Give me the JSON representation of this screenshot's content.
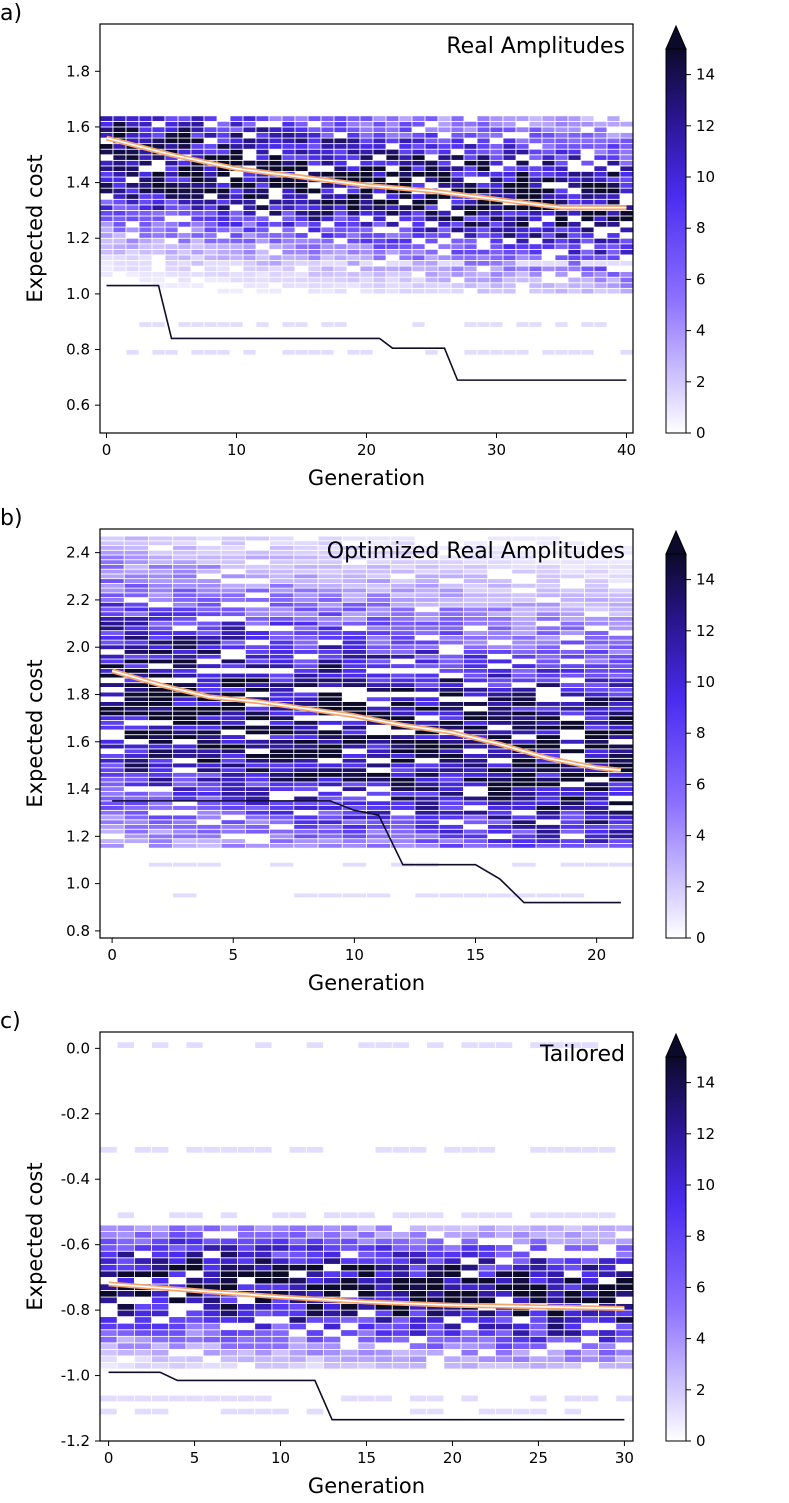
{
  "chart_data": [
    {
      "type": "heatmap",
      "panel_label": "a)",
      "title": "Real Amplitudes",
      "xlabel": "Generation",
      "ylabel": "Expected cost",
      "xlim": [
        -0.5,
        40.5
      ],
      "ylim": [
        0.5,
        1.97
      ],
      "xticks": [
        "0",
        "10",
        "20",
        "30",
        "40"
      ],
      "yticks": [
        "0.6",
        "0.8",
        "1.0",
        "1.2",
        "1.4",
        "1.6",
        "1.8"
      ],
      "generations": 41,
      "bin_width": 0.02,
      "main_range": [
        1.0,
        1.62
      ],
      "dense_center": [
        1.48,
        1.3
      ],
      "sparse_bands": [
        [
          1.1,
          1.12
        ],
        [
          0.78,
          0.8
        ],
        [
          0.88,
          0.9
        ]
      ],
      "mean_line": {
        "x": [
          0,
          5,
          10,
          15,
          20,
          25,
          30,
          35,
          40
        ],
        "y": [
          1.56,
          1.5,
          1.45,
          1.42,
          1.39,
          1.37,
          1.34,
          1.31,
          1.31
        ]
      },
      "best_line": {
        "x": [
          0,
          4,
          5,
          21,
          22,
          26,
          27,
          40
        ],
        "y": [
          1.03,
          1.03,
          0.84,
          0.84,
          0.805,
          0.805,
          0.69,
          0.69
        ]
      }
    },
    {
      "type": "heatmap",
      "panel_label": "b)",
      "title": "Optimized Real Amplitudes",
      "xlabel": "Generation",
      "ylabel": "Expected cost",
      "xlim": [
        -0.5,
        21.5
      ],
      "ylim": [
        0.77,
        2.5
      ],
      "xticks": [
        "0",
        "5",
        "10",
        "15",
        "20"
      ],
      "yticks": [
        "0.8",
        "1.0",
        "1.2",
        "1.4",
        "1.6",
        "1.8",
        "2.0",
        "2.2",
        "2.4"
      ],
      "generations": 22,
      "bin_width": 0.02,
      "main_range": [
        1.15,
        2.45
      ],
      "dense_center": [
        1.78,
        1.5
      ],
      "sparse_bands": [
        [
          1.07,
          1.09
        ],
        [
          0.94,
          0.96
        ]
      ],
      "mean_line": {
        "x": [
          0,
          2,
          4,
          6,
          8,
          10,
          12,
          14,
          16,
          18,
          20,
          21
        ],
        "y": [
          1.9,
          1.84,
          1.79,
          1.77,
          1.74,
          1.71,
          1.67,
          1.64,
          1.59,
          1.53,
          1.49,
          1.48
        ]
      },
      "best_line": {
        "x": [
          0,
          9,
          10,
          11,
          12,
          15,
          16,
          17,
          21
        ],
        "y": [
          1.35,
          1.35,
          1.31,
          1.29,
          1.08,
          1.08,
          1.02,
          0.92,
          0.92
        ]
      }
    },
    {
      "type": "heatmap",
      "panel_label": "c)",
      "title": "Tailored",
      "xlabel": "Generation",
      "ylabel": "Expected cost",
      "xlim": [
        -0.5,
        30.5
      ],
      "ylim": [
        -1.2,
        0.05
      ],
      "xticks": [
        "0",
        "5",
        "10",
        "15",
        "20",
        "25",
        "30"
      ],
      "yticks": [
        "-1.2",
        "-1.0",
        "-0.8",
        "-0.6",
        "-0.4",
        "-0.2",
        "0.0"
      ],
      "generations": 31,
      "bin_width": 0.02,
      "main_range": [
        -0.98,
        -0.56
      ],
      "dense_center": [
        -0.72,
        -0.78
      ],
      "sparse_bands": [
        [
          0.0,
          0.0
        ],
        [
          -0.32,
          -0.32
        ],
        [
          -0.52,
          -0.52
        ],
        [
          -1.08,
          -1.08
        ],
        [
          -1.12,
          -1.12
        ]
      ],
      "mean_line": {
        "x": [
          0,
          5,
          10,
          15,
          20,
          25,
          30
        ],
        "y": [
          -0.72,
          -0.74,
          -0.76,
          -0.775,
          -0.785,
          -0.79,
          -0.795
        ]
      },
      "best_line": {
        "x": [
          0,
          3,
          4,
          12,
          13,
          30
        ],
        "y": [
          -0.99,
          -0.99,
          -1.015,
          -1.015,
          -1.135,
          -1.135
        ]
      }
    }
  ],
  "colorbar": {
    "min": 0,
    "max": 14,
    "ticks": [
      "0",
      "2",
      "4",
      "6",
      "8",
      "10",
      "12",
      "14"
    ],
    "colors": [
      "#ffffff",
      "#6a45ff",
      "#3a1fc8",
      "#0c0a2a"
    ]
  },
  "line_colors": {
    "mean_outer": "#f3a56d",
    "mean_inner": "#ffffff",
    "best": "#0f0d2a"
  }
}
